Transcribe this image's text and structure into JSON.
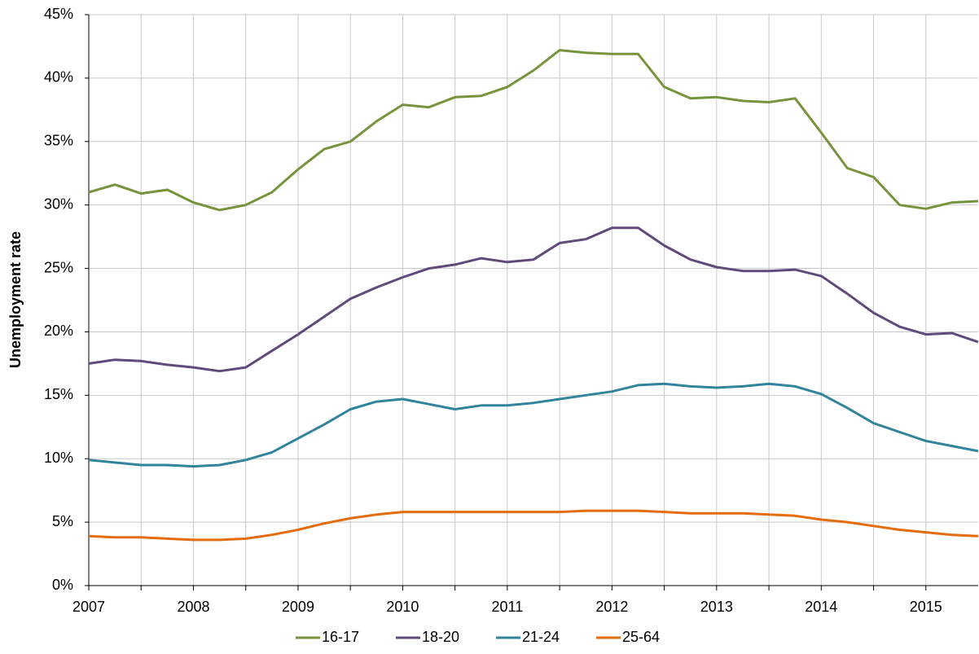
{
  "chart_data": {
    "type": "line",
    "y_label": "Unemployment rate",
    "x": [
      2007,
      2007.25,
      2007.5,
      2007.75,
      2008,
      2008.25,
      2008.5,
      2008.75,
      2009,
      2009.25,
      2009.5,
      2009.75,
      2010,
      2010.25,
      2010.5,
      2010.75,
      2011,
      2011.25,
      2011.5,
      2011.75,
      2012,
      2012.25,
      2012.5,
      2012.75,
      2013,
      2013.25,
      2013.5,
      2013.75,
      2014,
      2014.25,
      2014.5,
      2014.75,
      2015,
      2015.25,
      2015.5
    ],
    "series": [
      {
        "name": "16-17",
        "color": "#77933c",
        "values": [
          31.0,
          31.6,
          30.9,
          31.2,
          30.2,
          29.6,
          30.0,
          31.0,
          32.8,
          34.4,
          35.0,
          36.6,
          37.9,
          37.7,
          38.5,
          38.6,
          39.3,
          40.6,
          42.2,
          42.0,
          41.9,
          41.9,
          39.3,
          38.4,
          38.5,
          38.2,
          38.1,
          38.4,
          35.7,
          32.9,
          32.2,
          30.0,
          29.7,
          30.2,
          30.3
        ]
      },
      {
        "name": "18-20",
        "color": "#604a7b",
        "values": [
          17.5,
          17.8,
          17.7,
          17.4,
          17.2,
          16.9,
          17.2,
          18.5,
          19.8,
          21.2,
          22.6,
          23.5,
          24.3,
          25.0,
          25.3,
          25.8,
          25.5,
          25.7,
          27.0,
          27.3,
          28.2,
          28.2,
          26.8,
          25.7,
          25.1,
          24.8,
          24.8,
          24.9,
          24.4,
          23.0,
          21.5,
          20.4,
          19.8,
          19.9,
          19.2
        ]
      },
      {
        "name": "21-24",
        "color": "#31849b",
        "values": [
          9.9,
          9.7,
          9.5,
          9.5,
          9.4,
          9.5,
          9.9,
          10.5,
          11.6,
          12.7,
          13.9,
          14.5,
          14.7,
          14.3,
          13.9,
          14.2,
          14.2,
          14.4,
          14.7,
          15.0,
          15.3,
          15.8,
          15.9,
          15.7,
          15.6,
          15.7,
          15.9,
          15.7,
          15.1,
          14.0,
          12.8,
          12.1,
          11.4,
          11.0,
          10.6
        ]
      },
      {
        "name": "25-64",
        "color": "#e46c0a",
        "values": [
          3.9,
          3.8,
          3.8,
          3.7,
          3.6,
          3.6,
          3.7,
          4.0,
          4.4,
          4.9,
          5.3,
          5.6,
          5.8,
          5.8,
          5.8,
          5.8,
          5.8,
          5.8,
          5.8,
          5.9,
          5.9,
          5.9,
          5.8,
          5.7,
          5.7,
          5.7,
          5.6,
          5.5,
          5.2,
          5.0,
          4.7,
          4.4,
          4.2,
          4.0,
          3.9
        ]
      }
    ],
    "xlim": [
      2007,
      2015.5
    ],
    "xticks": [
      2007,
      2008,
      2009,
      2010,
      2011,
      2012,
      2013,
      2014,
      2015
    ],
    "x_minor_ticks": [
      2007.5,
      2008.5,
      2009.5,
      2010.5,
      2011.5,
      2012.5,
      2013.5,
      2014.5
    ],
    "ylim": [
      0,
      45
    ],
    "yticks": [
      {
        "value": 0,
        "label": "0%"
      },
      {
        "value": 5,
        "label": "5%"
      },
      {
        "value": 10,
        "label": "10%"
      },
      {
        "value": 15,
        "label": "15%"
      },
      {
        "value": 20,
        "label": "20%"
      },
      {
        "value": 25,
        "label": "25%"
      },
      {
        "value": 30,
        "label": "30%"
      },
      {
        "value": 35,
        "label": "35%"
      },
      {
        "value": 40,
        "label": "40%"
      },
      {
        "value": 45,
        "label": "45%"
      }
    ],
    "grid": true,
    "legend": "bottom"
  }
}
